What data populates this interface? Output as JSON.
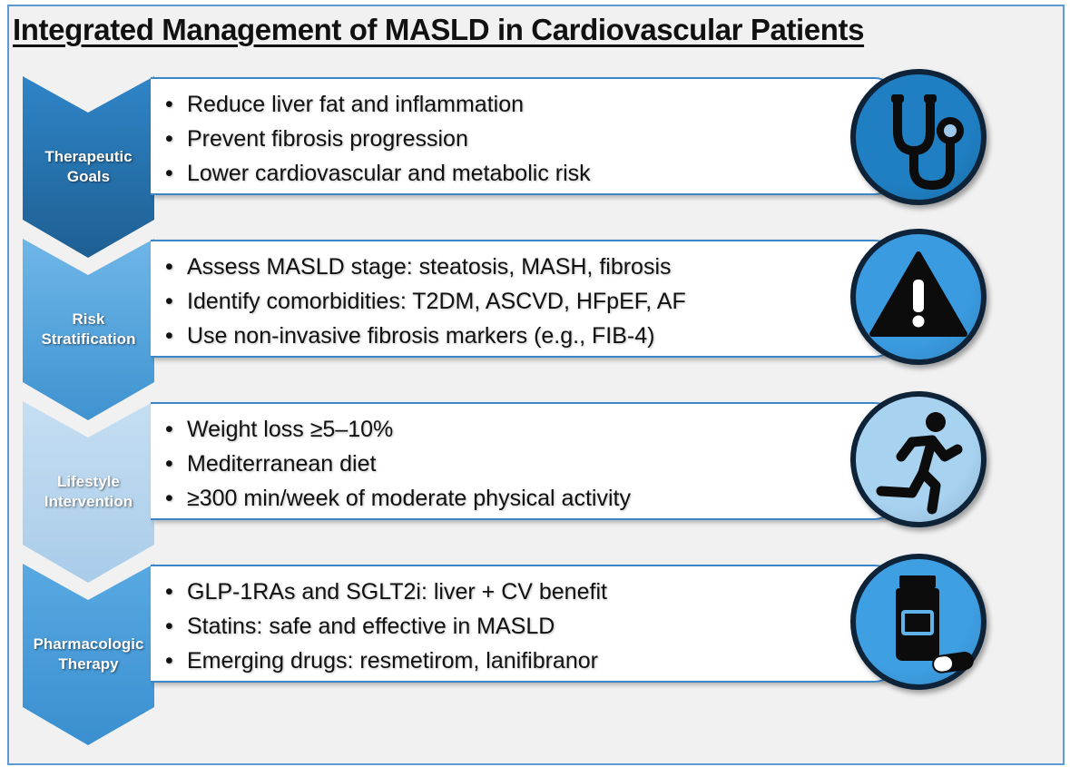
{
  "title": "Integrated Management of MASLD in Cardiovascular Patients",
  "colors": {
    "frame_border": "#5b9bd5",
    "box_border": "#3a86c8",
    "icon_border": "#0e2338"
  },
  "sections": [
    {
      "label_lines": [
        "Therapeutic",
        "Goals"
      ],
      "chevron_color_top": "#2f85c8",
      "chevron_color_bottom": "#1e5f92",
      "icon": "stethoscope-icon",
      "icon_bg": "#1f7fc2",
      "bullets": [
        "Reduce liver fat and inflammation",
        "Prevent fibrosis progression",
        "Lower cardiovascular and metabolic risk"
      ]
    },
    {
      "label_lines": [
        "Risk",
        "Stratification"
      ],
      "chevron_color_top": "#6fb6e8",
      "chevron_color_bottom": "#3f93d0",
      "icon": "warning-triangle-icon",
      "icon_bg": "#3a9be0",
      "bullets": [
        "Assess MASLD stage: steatosis, MASH, fibrosis",
        "Identify comorbidities: T2DM, ASCVD, HFpEF, AF",
        "Use non-invasive fibrosis markers (e.g., FIB-4)"
      ]
    },
    {
      "label_lines": [
        "Lifestyle",
        "Intervention"
      ],
      "chevron_color_top": "#c5def2",
      "chevron_color_bottom": "#a9cce9",
      "icon": "running-person-icon",
      "icon_bg": "#a7d3f1",
      "bullets": [
        "Weight loss ≥5–10%",
        "Mediterranean diet",
        "≥300 min/week of moderate physical activity"
      ]
    },
    {
      "label_lines": [
        "Pharmacologic",
        "Therapy"
      ],
      "chevron_color_top": "#58a9e2",
      "chevron_color_bottom": "#3a8fd0",
      "icon": "medicine-bottle-icon",
      "icon_bg": "#3e9fe3",
      "bullets": [
        "GLP-1RAs and SGLT2i: liver + CV benefit",
        "Statins: safe and effective in MASLD",
        "Emerging drugs: resmetirom, lanifibranor"
      ]
    }
  ]
}
